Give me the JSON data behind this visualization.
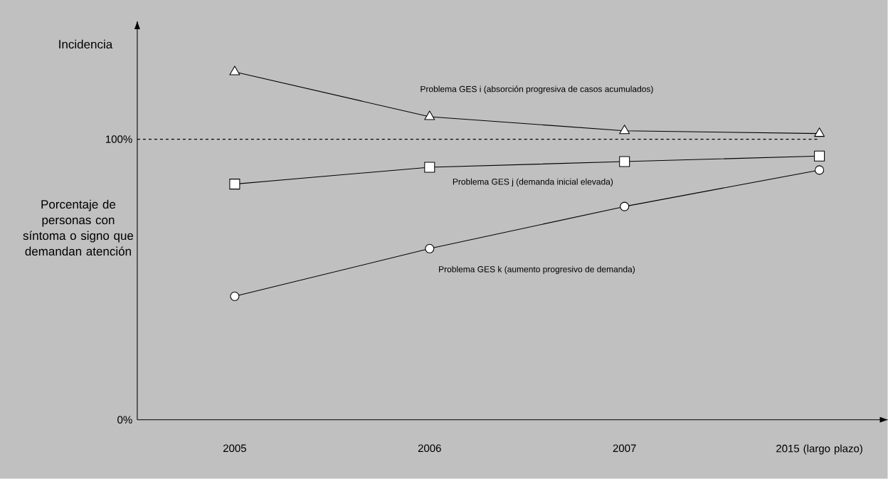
{
  "chart_data": {
    "type": "line",
    "ylabel": "Porcentaje de personas con síntoma o signo que demandan atención",
    "annotations": [
      "Incidencia"
    ],
    "categories": [
      "2005",
      "2006",
      "2007",
      "2015 (largo plazo)"
    ],
    "series": [
      {
        "name": "Problema GES i (absorción progresiva de casos acumulados)",
        "color": "#000000",
        "marker": "triangle",
        "values": [
          124,
          108,
          103,
          102
        ]
      },
      {
        "name": "Problema GES j (demanda inicial elevada)",
        "color": "#000000",
        "marker": "square",
        "values": [
          84,
          90,
          92,
          94
        ]
      },
      {
        "name": "Problema GES k (aumento progresivo de demanda)",
        "color": "#000000",
        "marker": "circle",
        "values": [
          44,
          61,
          76,
          89
        ]
      }
    ],
    "ylim": [
      0,
      142
    ],
    "yticks": [
      {
        "value": 0,
        "label": "0%"
      },
      {
        "value": 100,
        "label": "100%"
      }
    ],
    "ref_lines": [
      {
        "axis": "y",
        "value": 100,
        "line_style": "dashed"
      }
    ],
    "grid": false,
    "line_style": "solid"
  }
}
